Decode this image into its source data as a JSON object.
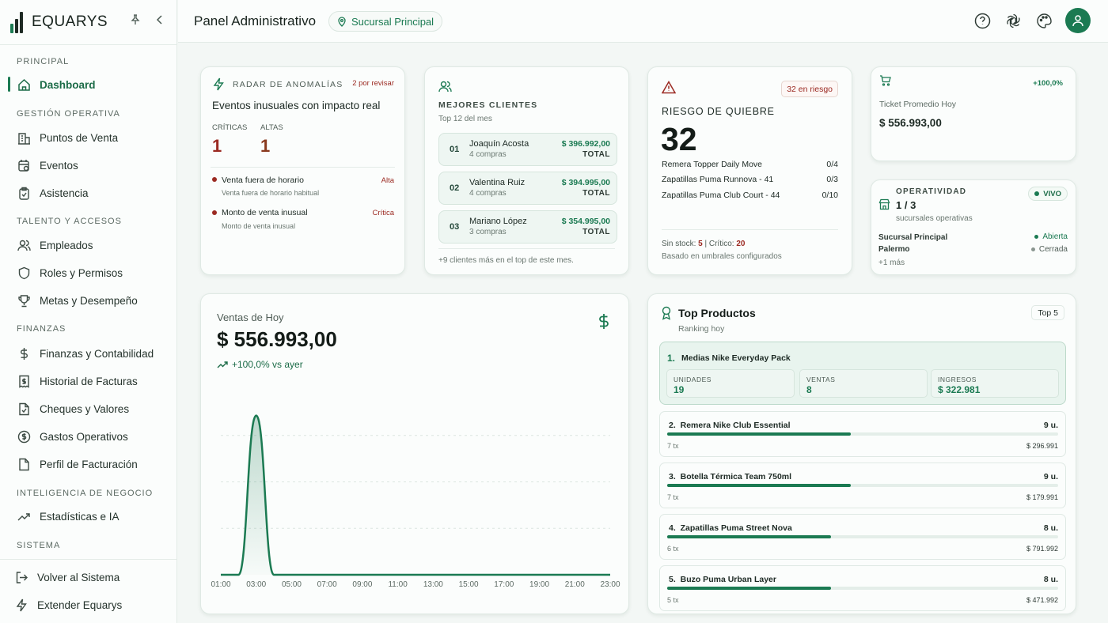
{
  "app": {
    "name": "EQUARYS"
  },
  "sidebar": {
    "sections": {
      "principal": "PRINCIPAL",
      "gestion": "GESTIÓN OPERATIVA",
      "talento": "TALENTO Y ACCESOS",
      "finanzas": "FINANZAS",
      "inteligencia": "INTELIGENCIA DE NEGOCIO",
      "sistema": "SISTEMA"
    },
    "items": {
      "dashboard": "Dashboard",
      "puntos": "Puntos de Venta",
      "eventos": "Eventos",
      "asistencia": "Asistencia",
      "empleados": "Empleados",
      "roles": "Roles y Permisos",
      "metas": "Metas y Desempeño",
      "finanzas": "Finanzas y Contabilidad",
      "historial": "Historial de Facturas",
      "cheques": "Cheques y Valores",
      "gastos": "Gastos Operativos",
      "perfil": "Perfil de Facturación",
      "estadisticas": "Estadísticas e IA",
      "volver": "Volver al Sistema",
      "extender": "Extender Equarys"
    }
  },
  "header": {
    "title": "Panel Administrativo",
    "branch": "Sucursal Principal"
  },
  "anomalies": {
    "title": "RADAR DE ANOMALÍAS",
    "badge": "2 por revisar",
    "subtitle": "Eventos inusuales con impacto real",
    "crit_label": "CRÍTICAS",
    "crit_value": "1",
    "high_label": "ALTAS",
    "high_value": "1",
    "items": [
      {
        "title": "Venta fuera de horario",
        "desc": "Venta fuera de horario habitual",
        "level": "Alta"
      },
      {
        "title": "Monto de venta inusual",
        "desc": "Monto de venta inusual",
        "level": "Crítica"
      }
    ]
  },
  "clients": {
    "title": "MEJORES CLIENTES",
    "subtitle": "Top 12 del mes",
    "list": [
      {
        "rank": "01",
        "name": "Joaquín Acosta",
        "purchases": "4 compras",
        "amount": "$ 396.992,00",
        "total": "TOTAL"
      },
      {
        "rank": "02",
        "name": "Valentina Ruiz",
        "purchases": "4 compras",
        "amount": "$ 394.995,00",
        "total": "TOTAL"
      },
      {
        "rank": "03",
        "name": "Mariano López",
        "purchases": "3 compras",
        "amount": "$ 354.995,00",
        "total": "TOTAL"
      }
    ],
    "footer": "+9 clientes más en el top de este mes."
  },
  "risk": {
    "badge": "32 en riesgo",
    "title": "RIESGO DE QUIEBRE",
    "value": "32",
    "items": [
      {
        "name": "Remera Topper Daily Move",
        "ratio": "0/4"
      },
      {
        "name": "Zapatillas Puma Runnova - 41",
        "ratio": "0/3"
      },
      {
        "name": "Zapatillas Puma Club Court - 44",
        "ratio": "0/10"
      }
    ],
    "stock_prefix": "Sin stock: ",
    "stock_value": "5",
    "sep": " | ",
    "crit_prefix": "Crítico: ",
    "crit_value": "20",
    "footer": "Basado en umbrales configurados"
  },
  "ticket": {
    "change": "+100,0%",
    "label": "Ticket Promedio Hoy",
    "value": "$ 556.993,00"
  },
  "ops": {
    "title": "OPERATIVIDAD",
    "badge": "VIVO",
    "value": "1 / 3",
    "subtitle": "sucursales operativas",
    "branches": [
      {
        "name": "Sucursal Principal",
        "status": "Abierta",
        "color": "#1b7a52"
      },
      {
        "name": "Palermo",
        "status": "Cerrada",
        "color": "#8a9690"
      }
    ],
    "more": "+1 más"
  },
  "sales": {
    "title": "Ventas de Hoy",
    "value": "$ 556.993,00",
    "change": "+100,0% vs ayer"
  },
  "chart_data": {
    "type": "area",
    "title": "Ventas de Hoy",
    "x": [
      "01:00",
      "02:00",
      "03:00",
      "04:00",
      "05:00",
      "06:00",
      "07:00",
      "08:00",
      "09:00",
      "10:00",
      "11:00",
      "12:00",
      "13:00",
      "14:00",
      "15:00",
      "16:00",
      "17:00",
      "18:00",
      "19:00",
      "20:00",
      "21:00",
      "22:00",
      "23:00"
    ],
    "tick_labels": [
      "01:00",
      "03:00",
      "05:00",
      "07:00",
      "09:00",
      "11:00",
      "13:00",
      "15:00",
      "17:00",
      "19:00",
      "21:00",
      "23:00"
    ],
    "series": [
      {
        "values": [
          0,
          0,
          556993,
          0,
          0,
          0,
          0,
          0,
          0,
          0,
          0,
          0,
          0,
          0,
          0,
          0,
          0,
          0,
          0,
          0,
          0,
          0,
          0
        ]
      }
    ],
    "ylim": [
      0,
      650000
    ],
    "grid": true,
    "color": "#1b7a52"
  },
  "top": {
    "title": "Top Productos",
    "subtitle": "Ranking hoy",
    "badge": "Top 5",
    "first": {
      "rank": "1.",
      "name": "Medias Nike Everyday Pack",
      "stats": [
        {
          "label": "UNIDADES",
          "value": "19"
        },
        {
          "label": "VENTAS",
          "value": "8"
        },
        {
          "label": "INGRESOS",
          "value": "$ 322.981"
        }
      ]
    },
    "others": [
      {
        "rank": "2.",
        "name": "Remera Nike Club Essential",
        "units": "9 u.",
        "tx": "7 tx",
        "price": "$ 296.991",
        "progress": 0.47
      },
      {
        "rank": "3.",
        "name": "Botella Térmica Team 750ml",
        "units": "9 u.",
        "tx": "7 tx",
        "price": "$ 179.991",
        "progress": 0.47
      },
      {
        "rank": "4.",
        "name": "Zapatillas Puma Street Nova",
        "units": "8 u.",
        "tx": "6 tx",
        "price": "$ 791.992",
        "progress": 0.42
      },
      {
        "rank": "5.",
        "name": "Buzo Puma Urban Layer",
        "units": "8 u.",
        "tx": "5 tx",
        "price": "$ 471.992",
        "progress": 0.42
      }
    ]
  }
}
